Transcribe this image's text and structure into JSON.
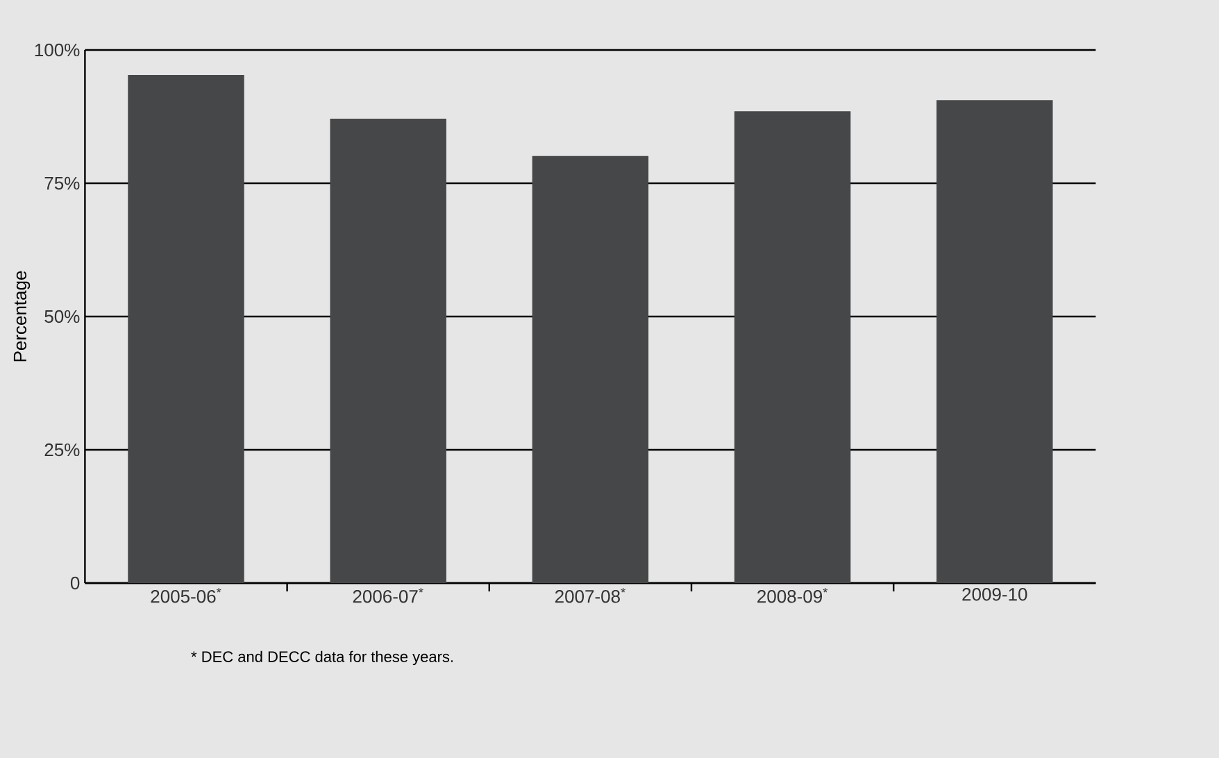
{
  "chart_data": {
    "type": "bar",
    "ylabel": "Percentage",
    "categories": [
      "2005-06$^{*}$",
      "2006-07$^{*}$",
      "2007-08$^{*}$",
      "2008-09$^{*}$",
      "2009-10"
    ],
    "values": [
      95.3,
      87.1,
      80.1,
      88.5,
      90.6
    ],
    "color": "#464749",
    "ylim": [
      0,
      100
    ],
    "yticks": [
      0,
      {
        "value": 25,
        "label": "25%"
      },
      {
        "value": 50,
        "label": "50%"
      },
      {
        "value": 75,
        "label": "75%"
      },
      {
        "value": 100,
        "label": "100%"
      }
    ],
    "grid": "y",
    "annotations": [
      "* DEC and DECC data for these years."
    ]
  }
}
